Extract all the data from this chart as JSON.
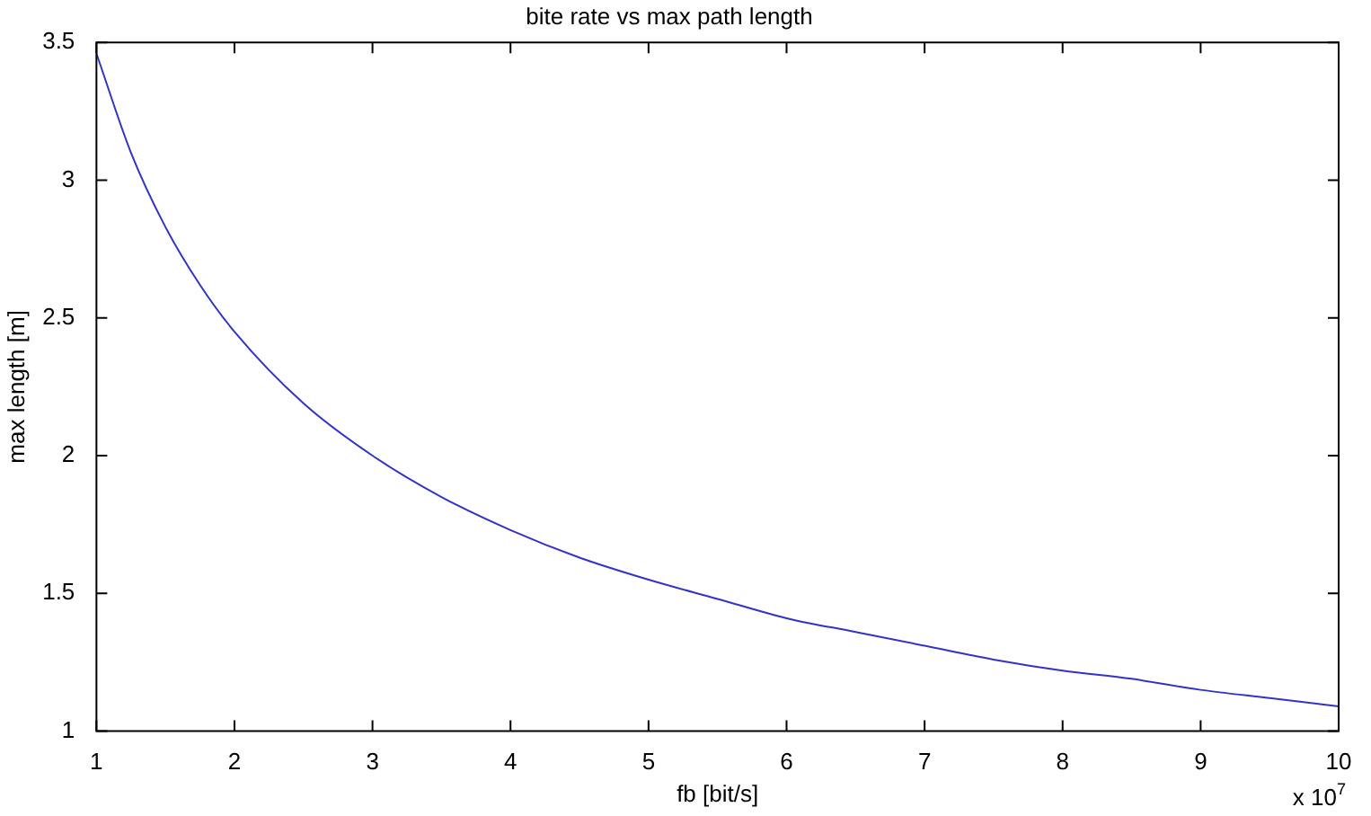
{
  "chart_data": {
    "type": "line",
    "title": "bite rate vs max path length",
    "xlabel": "fb [bit/s]",
    "ylabel": "max length [m]",
    "x": [
      1,
      1.25,
      1.5,
      1.75,
      2,
      2.5,
      3,
      3.5,
      4,
      4.5,
      5,
      5.5,
      6,
      6.5,
      7,
      7.5,
      8,
      8.5,
      9,
      9.5,
      10
    ],
    "series": [
      {
        "color": "#3333cc",
        "values": [
          3.46,
          3.1,
          2.83,
          2.62,
          2.45,
          2.19,
          2.0,
          1.85,
          1.73,
          1.63,
          1.55,
          1.48,
          1.41,
          1.36,
          1.31,
          1.26,
          1.22,
          1.19,
          1.15,
          1.12,
          1.09
        ]
      }
    ],
    "xlim": [
      1,
      10
    ],
    "xticks": [
      1,
      2,
      3,
      4,
      5,
      6,
      7,
      8,
      9,
      10
    ],
    "ylim": [
      1,
      3.5
    ],
    "yticks": [
      1,
      1.5,
      2,
      2.5,
      3,
      3.5
    ],
    "annotations": [
      "x 10$^{7}$"
    ],
    "marker": "none",
    "line_style": "solid"
  }
}
